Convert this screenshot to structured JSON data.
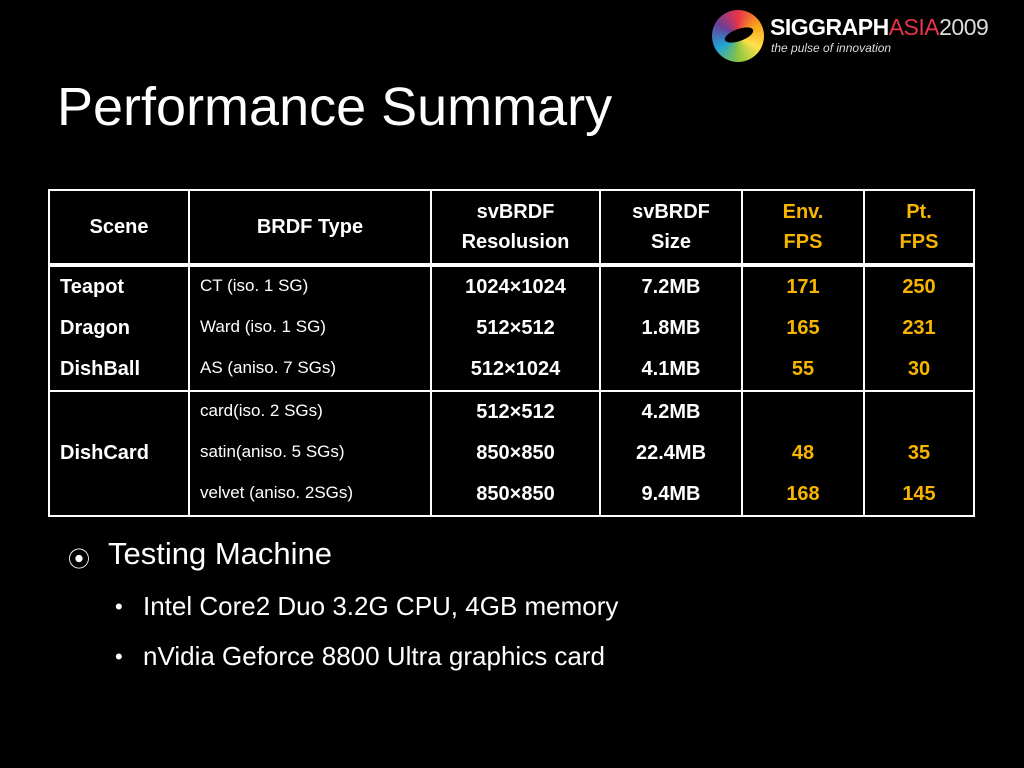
{
  "logo": {
    "brand": "SIGGRAPH",
    "region": "ASIA",
    "year": "2009",
    "tagline": "the pulse of innovation"
  },
  "title": "Performance Summary",
  "table": {
    "headers": [
      "Scene",
      "BRDF Type",
      "svBRDF\nResolusion",
      "svBRDF\nSize",
      "Env.\nFPS",
      "Pt.\nFPS"
    ],
    "groups": [
      {
        "rows": [
          {
            "scene": "Teapot",
            "brdf": "CT (iso. 1 SG)",
            "resolution": "1024×1024",
            "size": "7.2MB",
            "env_fps": 171,
            "pt_fps": 250
          },
          {
            "scene": "Dragon",
            "brdf": "Ward (iso. 1 SG)",
            "resolution": "512×512",
            "size": "1.8MB",
            "env_fps": 165,
            "pt_fps": 231
          },
          {
            "scene": "DishBall",
            "brdf": "AS (aniso. 7 SGs)",
            "resolution": "512×1024",
            "size": "4.1MB",
            "env_fps": 55,
            "pt_fps": 30
          }
        ]
      },
      {
        "scene": "DishCard",
        "rows": [
          {
            "brdf": "card(iso. 2 SGs)",
            "resolution": "512×512",
            "size": "4.2MB"
          },
          {
            "brdf": "satin(aniso. 5 SGs)",
            "resolution": "850×850",
            "size": "22.4MB",
            "env_fps": 48,
            "pt_fps": 35
          },
          {
            "brdf": "velvet (aniso. 2SGs)",
            "resolution": "850×850",
            "size": "9.4MB",
            "env_fps": 168,
            "pt_fps": 145
          }
        ]
      }
    ]
  },
  "bullets": [
    {
      "text": "Testing Machine",
      "items": [
        "Intel Core2 Duo 3.2G CPU, 4GB memory",
        "nVidia Geforce 8800 Ultra graphics card"
      ]
    }
  ]
}
